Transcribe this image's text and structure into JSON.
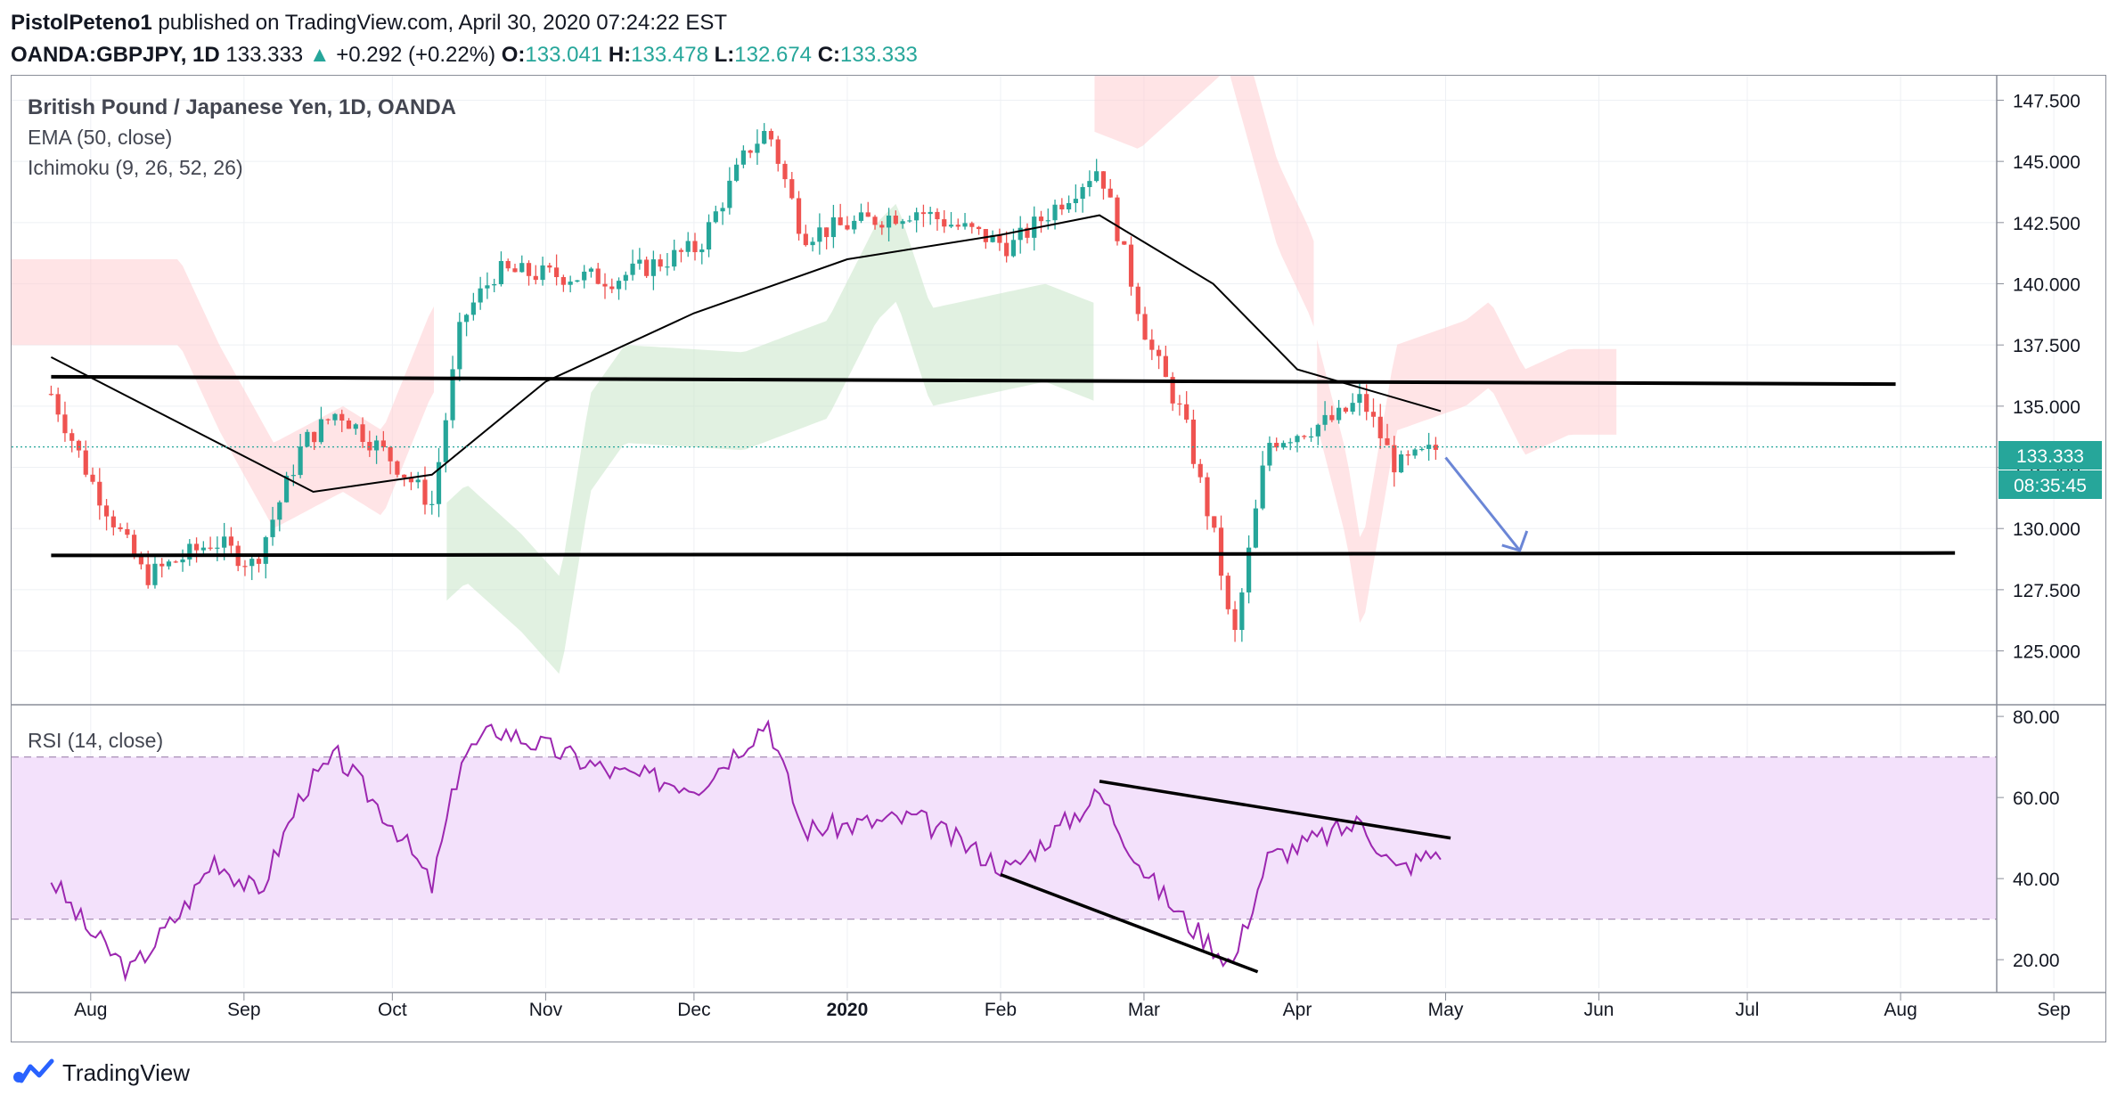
{
  "header": {
    "author": "PistolPeteno1",
    "published": "published on TradingView.com, April 30, 2020 07:24:22 EST",
    "symbol": "OANDA:GBPJPY, 1D",
    "last": "133.333",
    "change": "+0.292 (+0.22%)",
    "open_label": "O:",
    "open": "133.041",
    "high_label": "H:",
    "high": "133.478",
    "low_label": "L:",
    "low": "132.674",
    "close_label": "C:",
    "close": "133.333"
  },
  "legend": {
    "title": "British Pound / Japanese Yen, 1D, OANDA",
    "ema": "EMA (50, close)",
    "ichimoku": "Ichimoku (9, 26, 52, 26)",
    "rsi": "RSI (14, close)"
  },
  "price_badge": "133.333",
  "countdown_badge": "08:35:45",
  "footer": {
    "brand": "TradingView"
  },
  "colors": {
    "up": "#26a69a",
    "down": "#ef5350",
    "ema": "#000000",
    "cloud_bull": "#c8e6c9",
    "cloud_bear": "#ffcdd2",
    "rsi_line": "#9c27b0",
    "rsi_band": "#f3e1fb",
    "arrow": "#6b86d6"
  },
  "chart_data": [
    {
      "type": "candlestick",
      "title": "British Pound / Japanese Yen, 1D, OANDA",
      "y_axis": {
        "ticks": [
          "125.000",
          "127.500",
          "130.000",
          "132.500",
          "135.000",
          "137.500",
          "140.000",
          "142.500",
          "145.000",
          "147.500"
        ],
        "range": [
          122.8,
          148.5
        ]
      },
      "x_axis": {
        "ticks": [
          "Aug",
          "Sep",
          "Oct",
          "Nov",
          "Dec",
          "2020",
          "Feb",
          "Mar",
          "Apr",
          "May",
          "Jun",
          "Jul",
          "Aug",
          "Sep"
        ]
      },
      "last_price": 133.333,
      "approx_close_path": [
        {
          "date": "2019-07-24",
          "close": 135.5
        },
        {
          "date": "2019-08-01",
          "close": 132.0
        },
        {
          "date": "2019-08-12",
          "close": 128.0
        },
        {
          "date": "2019-08-26",
          "close": 129.5
        },
        {
          "date": "2019-09-03",
          "close": 128.5
        },
        {
          "date": "2019-09-13",
          "close": 133.5
        },
        {
          "date": "2019-09-20",
          "close": 134.8
        },
        {
          "date": "2019-10-01",
          "close": 132.8
        },
        {
          "date": "2019-10-09",
          "close": 131.0
        },
        {
          "date": "2019-10-15",
          "close": 138.5
        },
        {
          "date": "2019-10-22",
          "close": 140.5
        },
        {
          "date": "2019-11-15",
          "close": 140.2
        },
        {
          "date": "2019-12-02",
          "close": 141.5
        },
        {
          "date": "2019-12-12",
          "close": 145.5
        },
        {
          "date": "2019-12-16",
          "close": 146.3
        },
        {
          "date": "2019-12-23",
          "close": 142.0
        },
        {
          "date": "2020-01-15",
          "close": 143.0
        },
        {
          "date": "2020-02-03",
          "close": 141.5
        },
        {
          "date": "2020-02-21",
          "close": 144.8
        },
        {
          "date": "2020-03-02",
          "close": 137.5
        },
        {
          "date": "2020-03-09",
          "close": 134.5
        },
        {
          "date": "2020-03-16",
          "close": 129.0
        },
        {
          "date": "2020-03-19",
          "close": 125.2
        },
        {
          "date": "2020-03-26",
          "close": 133.5
        },
        {
          "date": "2020-04-09",
          "close": 134.5
        },
        {
          "date": "2020-04-14",
          "close": 135.3
        },
        {
          "date": "2020-04-21",
          "close": 132.5
        },
        {
          "date": "2020-04-30",
          "close": 133.333
        }
      ],
      "ema_50_approx": [
        {
          "date": "2019-07-24",
          "value": 137.0
        },
        {
          "date": "2019-09-15",
          "value": 131.5
        },
        {
          "date": "2019-10-09",
          "value": 132.2
        },
        {
          "date": "2019-11-01",
          "value": 136.0
        },
        {
          "date": "2019-12-01",
          "value": 138.8
        },
        {
          "date": "2020-01-01",
          "value": 141.0
        },
        {
          "date": "2020-02-01",
          "value": 142.0
        },
        {
          "date": "2020-02-21",
          "value": 142.8
        },
        {
          "date": "2020-03-15",
          "value": 140.0
        },
        {
          "date": "2020-04-01",
          "value": 136.5
        },
        {
          "date": "2020-04-30",
          "value": 134.8
        }
      ],
      "horizontal_lines": [
        {
          "from_date": "2019-07-24",
          "to_date": "2020-07-31",
          "from_value": 136.2,
          "to_value": 135.9
        },
        {
          "from_date": "2019-07-24",
          "to_date": "2020-08-12",
          "from_value": 128.9,
          "to_value": 129.0
        }
      ],
      "projection_arrow": {
        "from": {
          "date": "2020-05-01",
          "value": 132.9
        },
        "to": {
          "date": "2020-05-16",
          "value": 129.1
        }
      }
    },
    {
      "type": "line",
      "title": "RSI (14, close)",
      "y_axis": {
        "ticks": [
          "20.00",
          "40.00",
          "60.00",
          "80.00"
        ],
        "range": [
          13,
          82
        ],
        "band": [
          30,
          70
        ]
      },
      "approx_series": [
        {
          "date": "2019-07-24",
          "value": 40
        },
        {
          "date": "2019-07-31",
          "value": 28
        },
        {
          "date": "2019-08-09",
          "value": 17
        },
        {
          "date": "2019-08-20",
          "value": 33
        },
        {
          "date": "2019-08-26",
          "value": 45
        },
        {
          "date": "2019-09-04",
          "value": 36
        },
        {
          "date": "2019-09-13",
          "value": 62
        },
        {
          "date": "2019-09-20",
          "value": 70
        },
        {
          "date": "2019-10-02",
          "value": 52
        },
        {
          "date": "2019-10-09",
          "value": 38
        },
        {
          "date": "2019-10-15",
          "value": 70
        },
        {
          "date": "2019-10-22",
          "value": 77
        },
        {
          "date": "2019-11-15",
          "value": 66
        },
        {
          "date": "2019-12-02",
          "value": 63
        },
        {
          "date": "2019-12-16",
          "value": 79
        },
        {
          "date": "2019-12-23",
          "value": 52
        },
        {
          "date": "2020-01-15",
          "value": 55
        },
        {
          "date": "2020-02-03",
          "value": 42
        },
        {
          "date": "2020-02-21",
          "value": 61
        },
        {
          "date": "2020-03-02",
          "value": 40
        },
        {
          "date": "2020-03-09",
          "value": 30
        },
        {
          "date": "2020-03-19",
          "value": 19
        },
        {
          "date": "2020-03-26",
          "value": 45
        },
        {
          "date": "2020-04-14",
          "value": 54
        },
        {
          "date": "2020-04-21",
          "value": 42
        },
        {
          "date": "2020-04-30",
          "value": 47
        }
      ],
      "trend_lines": [
        {
          "from": {
            "date": "2020-02-21",
            "value": 64
          },
          "to": {
            "date": "2020-05-02",
            "value": 50
          }
        },
        {
          "from": {
            "date": "2020-02-01",
            "value": 41
          },
          "to": {
            "date": "2020-03-24",
            "value": 17
          }
        }
      ]
    }
  ]
}
